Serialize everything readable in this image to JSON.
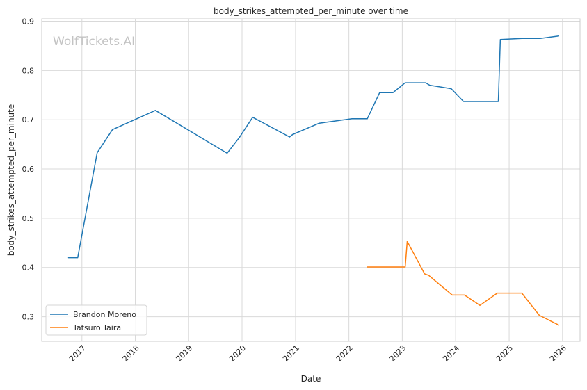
{
  "chart_data": {
    "type": "line",
    "title": "body_strikes_attempted_per_minute over time",
    "xlabel": "Date",
    "ylabel": "body_strikes_attempted_per_minute",
    "watermark": "WolfTickets.AI",
    "x_ticks": [
      "2017",
      "2018",
      "2019",
      "2020",
      "2021",
      "2022",
      "2023",
      "2024",
      "2025",
      "2026"
    ],
    "y_ticks": [
      0.3,
      0.4,
      0.5,
      0.6,
      0.7,
      0.8,
      0.9
    ],
    "xlim": [
      "2016-04-01",
      "2026-05-01"
    ],
    "ylim": [
      0.25,
      0.905
    ],
    "grid": true,
    "legend_position": "lower-left",
    "series": [
      {
        "name": "Brandon Moreno",
        "color": "#1f77b4",
        "points": [
          [
            "2016-10-01",
            0.42
          ],
          [
            "2016-12-03",
            0.42
          ],
          [
            "2017-04-15",
            0.633
          ],
          [
            "2017-07-29",
            0.68
          ],
          [
            "2018-05-19",
            0.719
          ],
          [
            "2019-09-21",
            0.632
          ],
          [
            "2019-12-14",
            0.664
          ],
          [
            "2020-03-14",
            0.705
          ],
          [
            "2020-11-21",
            0.665
          ],
          [
            "2020-12-12",
            0.67
          ],
          [
            "2021-06-12",
            0.693
          ],
          [
            "2022-01-22",
            0.702
          ],
          [
            "2022-05-07",
            0.702
          ],
          [
            "2022-07-30",
            0.755
          ],
          [
            "2022-10-29",
            0.755
          ],
          [
            "2023-01-21",
            0.775
          ],
          [
            "2023-06-10",
            0.775
          ],
          [
            "2023-07-08",
            0.77
          ],
          [
            "2023-12-02",
            0.763
          ],
          [
            "2024-02-24",
            0.737
          ],
          [
            "2024-10-19",
            0.737
          ],
          [
            "2024-11-02",
            0.863
          ],
          [
            "2025-03-29",
            0.865
          ],
          [
            "2025-08-02",
            0.865
          ],
          [
            "2025-12-06",
            0.87
          ]
        ]
      },
      {
        "name": "Tatsuro Taira",
        "color": "#ff7f0e",
        "points": [
          [
            "2022-05-07",
            0.401
          ],
          [
            "2022-12-17",
            0.401
          ],
          [
            "2023-01-21",
            0.401
          ],
          [
            "2023-02-04",
            0.453
          ],
          [
            "2023-06-03",
            0.387
          ],
          [
            "2023-07-01",
            0.384
          ],
          [
            "2023-12-09",
            0.344
          ],
          [
            "2024-03-02",
            0.344
          ],
          [
            "2024-06-15",
            0.323
          ],
          [
            "2024-10-12",
            0.348
          ],
          [
            "2025-03-29",
            0.348
          ],
          [
            "2025-07-26",
            0.303
          ],
          [
            "2025-12-06",
            0.283
          ]
        ]
      }
    ]
  }
}
